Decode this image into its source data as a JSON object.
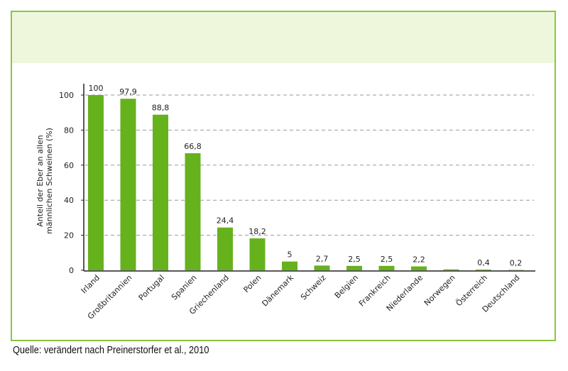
{
  "chart_data": {
    "type": "bar",
    "y_label_lines": [
      "Anteil der Eber an allen",
      "männlichen Schweinen (%)"
    ],
    "categories": [
      "Irland",
      "Großbritannien",
      "Portugal",
      "Spanien",
      "Griechenland",
      "Polen",
      "Dänemark",
      "Schweiz",
      "Belgien",
      "Frankreich",
      "Niederlande",
      "Norwegen",
      "Österreich",
      "Deutschland"
    ],
    "values": [
      100,
      97.9,
      88.8,
      66.8,
      24.4,
      18.2,
      5,
      2.7,
      2.5,
      2.5,
      2.2,
      0.5,
      0.4,
      0.2
    ],
    "value_labels": [
      "100",
      "97,9",
      "88,8",
      "66,8",
      "24,4",
      "18,2",
      "5",
      "2,7",
      "2,5",
      "2,5",
      "2,2",
      null,
      "0,4",
      "0,2"
    ],
    "color": "#66b21d",
    "ylim": [
      0,
      100
    ],
    "yticks": [
      0,
      20,
      40,
      60,
      80,
      100
    ],
    "grid": true
  },
  "source": "Quelle: verändert nach Preinerstorfer et al., 2010"
}
